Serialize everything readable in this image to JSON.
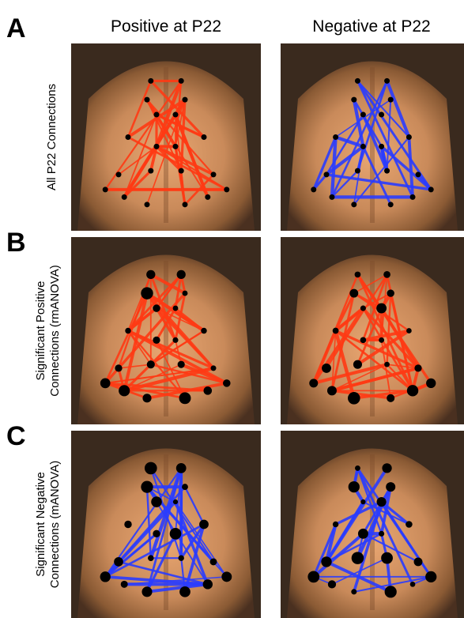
{
  "panels": [
    {
      "letter": "A",
      "label": [
        "All P22 Connections"
      ]
    },
    {
      "letter": "B",
      "label": [
        "Significant Positive",
        "Connections (rmANOVA)"
      ]
    },
    {
      "letter": "C",
      "label": [
        "Significant Negative",
        "Connections (mANOVA)"
      ]
    }
  ],
  "columns": [
    "Positive at P22",
    "Negative at P22"
  ]
}
